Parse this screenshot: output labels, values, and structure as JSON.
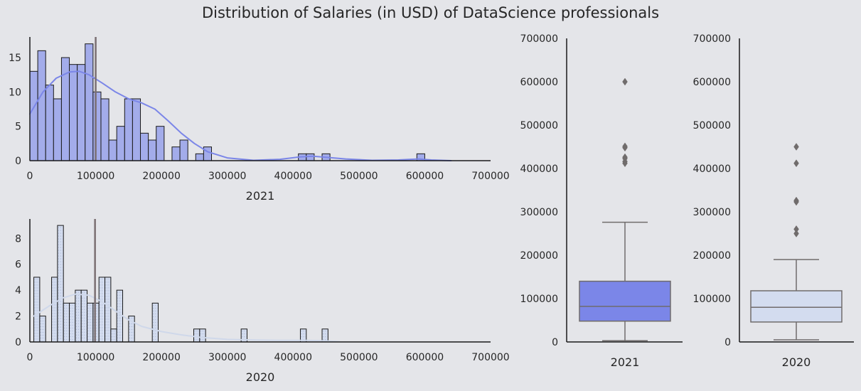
{
  "suptitle": "Distribution of Salaries (in USD) of DataScience professionals",
  "colors": {
    "background": "#e4e5e9",
    "hist_2021_fill": "#a3acea",
    "kde_2021": "#7b86e8",
    "hist_2020_fill": "#d3dcef",
    "kde_2020": "#cfd8ea",
    "box_2021_fill": "#7b86e8",
    "box_2020_fill": "#d3dcef",
    "mean_line": "#7a6f72",
    "box_line": "#706c6c",
    "axis": "#1a1a1a"
  },
  "chart_data": [
    {
      "id": "hist2021",
      "type": "histogram",
      "xlabel": "2021",
      "xlim": [
        0,
        700000
      ],
      "ylim": [
        0,
        18
      ],
      "xticks": [
        0,
        100000,
        200000,
        300000,
        400000,
        500000,
        600000,
        700000
      ],
      "yticks": [
        0,
        5,
        10,
        15
      ],
      "bin_width": 12000,
      "bins_start": [
        0,
        12000,
        24000,
        36000,
        48000,
        60000,
        72000,
        84000,
        96000,
        108000,
        120000,
        132000,
        144000,
        156000,
        168000,
        180000,
        192000,
        216000,
        228000,
        252000,
        264000,
        408000,
        420000,
        444000,
        588000
      ],
      "counts": [
        13,
        16,
        11,
        9,
        15,
        14,
        14,
        17,
        10,
        9,
        3,
        5,
        9,
        9,
        4,
        3,
        5,
        2,
        3,
        1,
        2,
        1,
        1,
        1,
        1
      ],
      "mean_line": 100000,
      "kde": {
        "x": [
          0,
          20000,
          40000,
          60000,
          75000,
          90000,
          110000,
          130000,
          150000,
          170000,
          190000,
          210000,
          230000,
          250000,
          270000,
          300000,
          340000,
          380000,
          410000,
          430000,
          450000,
          480000,
          520000,
          560000,
          590000,
          610000,
          640000
        ],
        "y": [
          6.8,
          10.0,
          12.0,
          12.9,
          13.0,
          12.5,
          11.3,
          10.0,
          9.0,
          8.4,
          7.5,
          5.8,
          4.0,
          2.5,
          1.3,
          0.4,
          0.05,
          0.2,
          0.55,
          0.65,
          0.5,
          0.25,
          0.05,
          0.1,
          0.25,
          0.1,
          0.0
        ]
      }
    },
    {
      "id": "hist2020",
      "type": "histogram",
      "xlabel": "2020",
      "xlim": [
        0,
        700000
      ],
      "ylim": [
        0,
        9.5
      ],
      "xticks": [
        0,
        100000,
        200000,
        300000,
        400000,
        500000,
        600000,
        700000
      ],
      "yticks": [
        0,
        2,
        4,
        6,
        8
      ],
      "bin_width": 9000,
      "bins_start": [
        6000,
        15000,
        33000,
        42000,
        51000,
        60000,
        69000,
        78000,
        87000,
        96000,
        105000,
        114000,
        123000,
        132000,
        150000,
        186000,
        249000,
        258000,
        321000,
        411000,
        444000
      ],
      "counts": [
        5,
        2,
        5,
        9,
        3,
        3,
        4,
        4,
        3,
        3,
        5,
        5,
        1,
        4,
        2,
        3,
        1,
        1,
        1,
        1,
        1
      ],
      "mean_line": 99000,
      "kde": {
        "x": [
          6000,
          30000,
          50000,
          70000,
          90000,
          110000,
          130000,
          150000,
          170000,
          200000,
          230000,
          260000,
          300000,
          340000,
          380000,
          420000,
          450000,
          470000
        ],
        "y": [
          2.0,
          2.8,
          3.4,
          3.7,
          3.6,
          3.1,
          2.4,
          1.7,
          1.2,
          0.8,
          0.55,
          0.35,
          0.2,
          0.15,
          0.12,
          0.12,
          0.08,
          0.02
        ]
      }
    },
    {
      "id": "box2021",
      "type": "boxplot",
      "xlabel": "2021",
      "ylim": [
        0,
        700000
      ],
      "yticks": [
        0,
        100000,
        200000,
        300000,
        400000,
        500000,
        600000,
        700000
      ],
      "whisker_low": 2800,
      "q1": 48000,
      "median": 82000,
      "q3": 140000,
      "whisker_high": 276000,
      "outliers": [
        412000,
        416000,
        423000,
        426000,
        448000,
        451000,
        600000
      ]
    },
    {
      "id": "box2020",
      "type": "boxplot",
      "xlabel": "2020",
      "ylim": [
        0,
        700000
      ],
      "yticks": [
        0,
        100000,
        200000,
        300000,
        400000,
        500000,
        600000,
        700000
      ],
      "whisker_low": 5000,
      "q1": 46000,
      "median": 80000,
      "q3": 118000,
      "whisker_high": 190000,
      "outliers": [
        250000,
        260000,
        323000,
        326000,
        412000,
        450000
      ]
    }
  ]
}
